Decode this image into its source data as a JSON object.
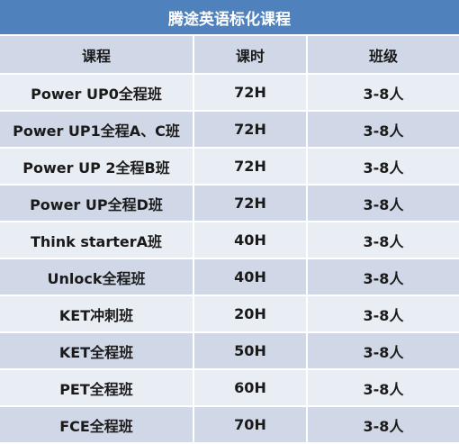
{
  "title": "腾途英语标化课程",
  "headers": [
    "课程",
    "课时",
    "班级"
  ],
  "rows": [
    [
      "Power UP0全程班",
      "72H",
      "3-8人"
    ],
    [
      "Power UP1全程A、C班",
      "72H",
      "3-8人"
    ],
    [
      "Power UP 2全程B班",
      "72H",
      "3-8人"
    ],
    [
      "Power UP全程D班",
      "72H",
      "3-8人"
    ],
    [
      "Think starterA班",
      "40H",
      "3-8人"
    ],
    [
      "Unlock全程班",
      "40H",
      "3-8人"
    ],
    [
      "KET冲刺班",
      "20H",
      "3-8人"
    ],
    [
      "KET全程班",
      "50H",
      "3-8人"
    ],
    [
      "PET全程班",
      "60H",
      "3-8人"
    ],
    [
      "FCE全程班",
      "70H",
      "3-8人"
    ]
  ],
  "colors": {
    "title_bg": "#4f81bd",
    "header_bg": "#d0d8e8",
    "row_light": "#e9edf4",
    "row_dark": "#d0d8e8"
  }
}
